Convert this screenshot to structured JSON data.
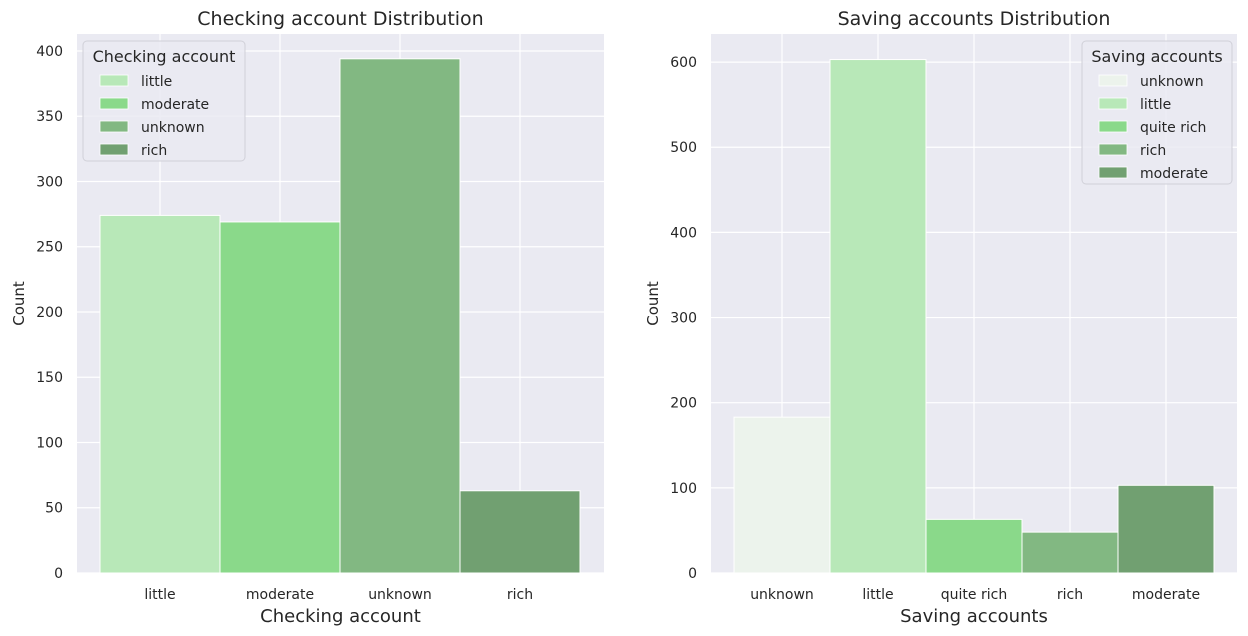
{
  "chart_data": [
    {
      "type": "bar",
      "title": "Checking account Distribution",
      "xlabel": "Checking account",
      "ylabel": "Count",
      "categories": [
        "little",
        "moderate",
        "unknown",
        "rich"
      ],
      "values": [
        274,
        269,
        394,
        63
      ],
      "colors": [
        "#b8e8b8",
        "#8ad98a",
        "#82b882",
        "#71a071"
      ],
      "ylim": [
        0,
        413
      ],
      "yticks": [
        0,
        50,
        100,
        150,
        200,
        250,
        300,
        350,
        400
      ],
      "grid": true,
      "legend": {
        "title": "Checking account",
        "placement": "top-left",
        "entries": [
          "little",
          "moderate",
          "unknown",
          "rich"
        ]
      }
    },
    {
      "type": "bar",
      "title": "Saving accounts Distribution",
      "xlabel": "Saving accounts",
      "ylabel": "Count",
      "categories": [
        "unknown",
        "little",
        "quite rich",
        "rich",
        "moderate"
      ],
      "values": [
        183,
        603,
        63,
        48,
        103
      ],
      "colors": [
        "#ecf3ec",
        "#b8e8b8",
        "#8ad98a",
        "#82b882",
        "#71a071"
      ],
      "ylim": [
        0,
        633
      ],
      "yticks": [
        0,
        100,
        200,
        300,
        400,
        500,
        600
      ],
      "grid": true,
      "legend": {
        "title": "Saving accounts",
        "placement": "top-right",
        "entries": [
          "unknown",
          "little",
          "quite rich",
          "rich",
          "moderate"
        ]
      }
    }
  ]
}
